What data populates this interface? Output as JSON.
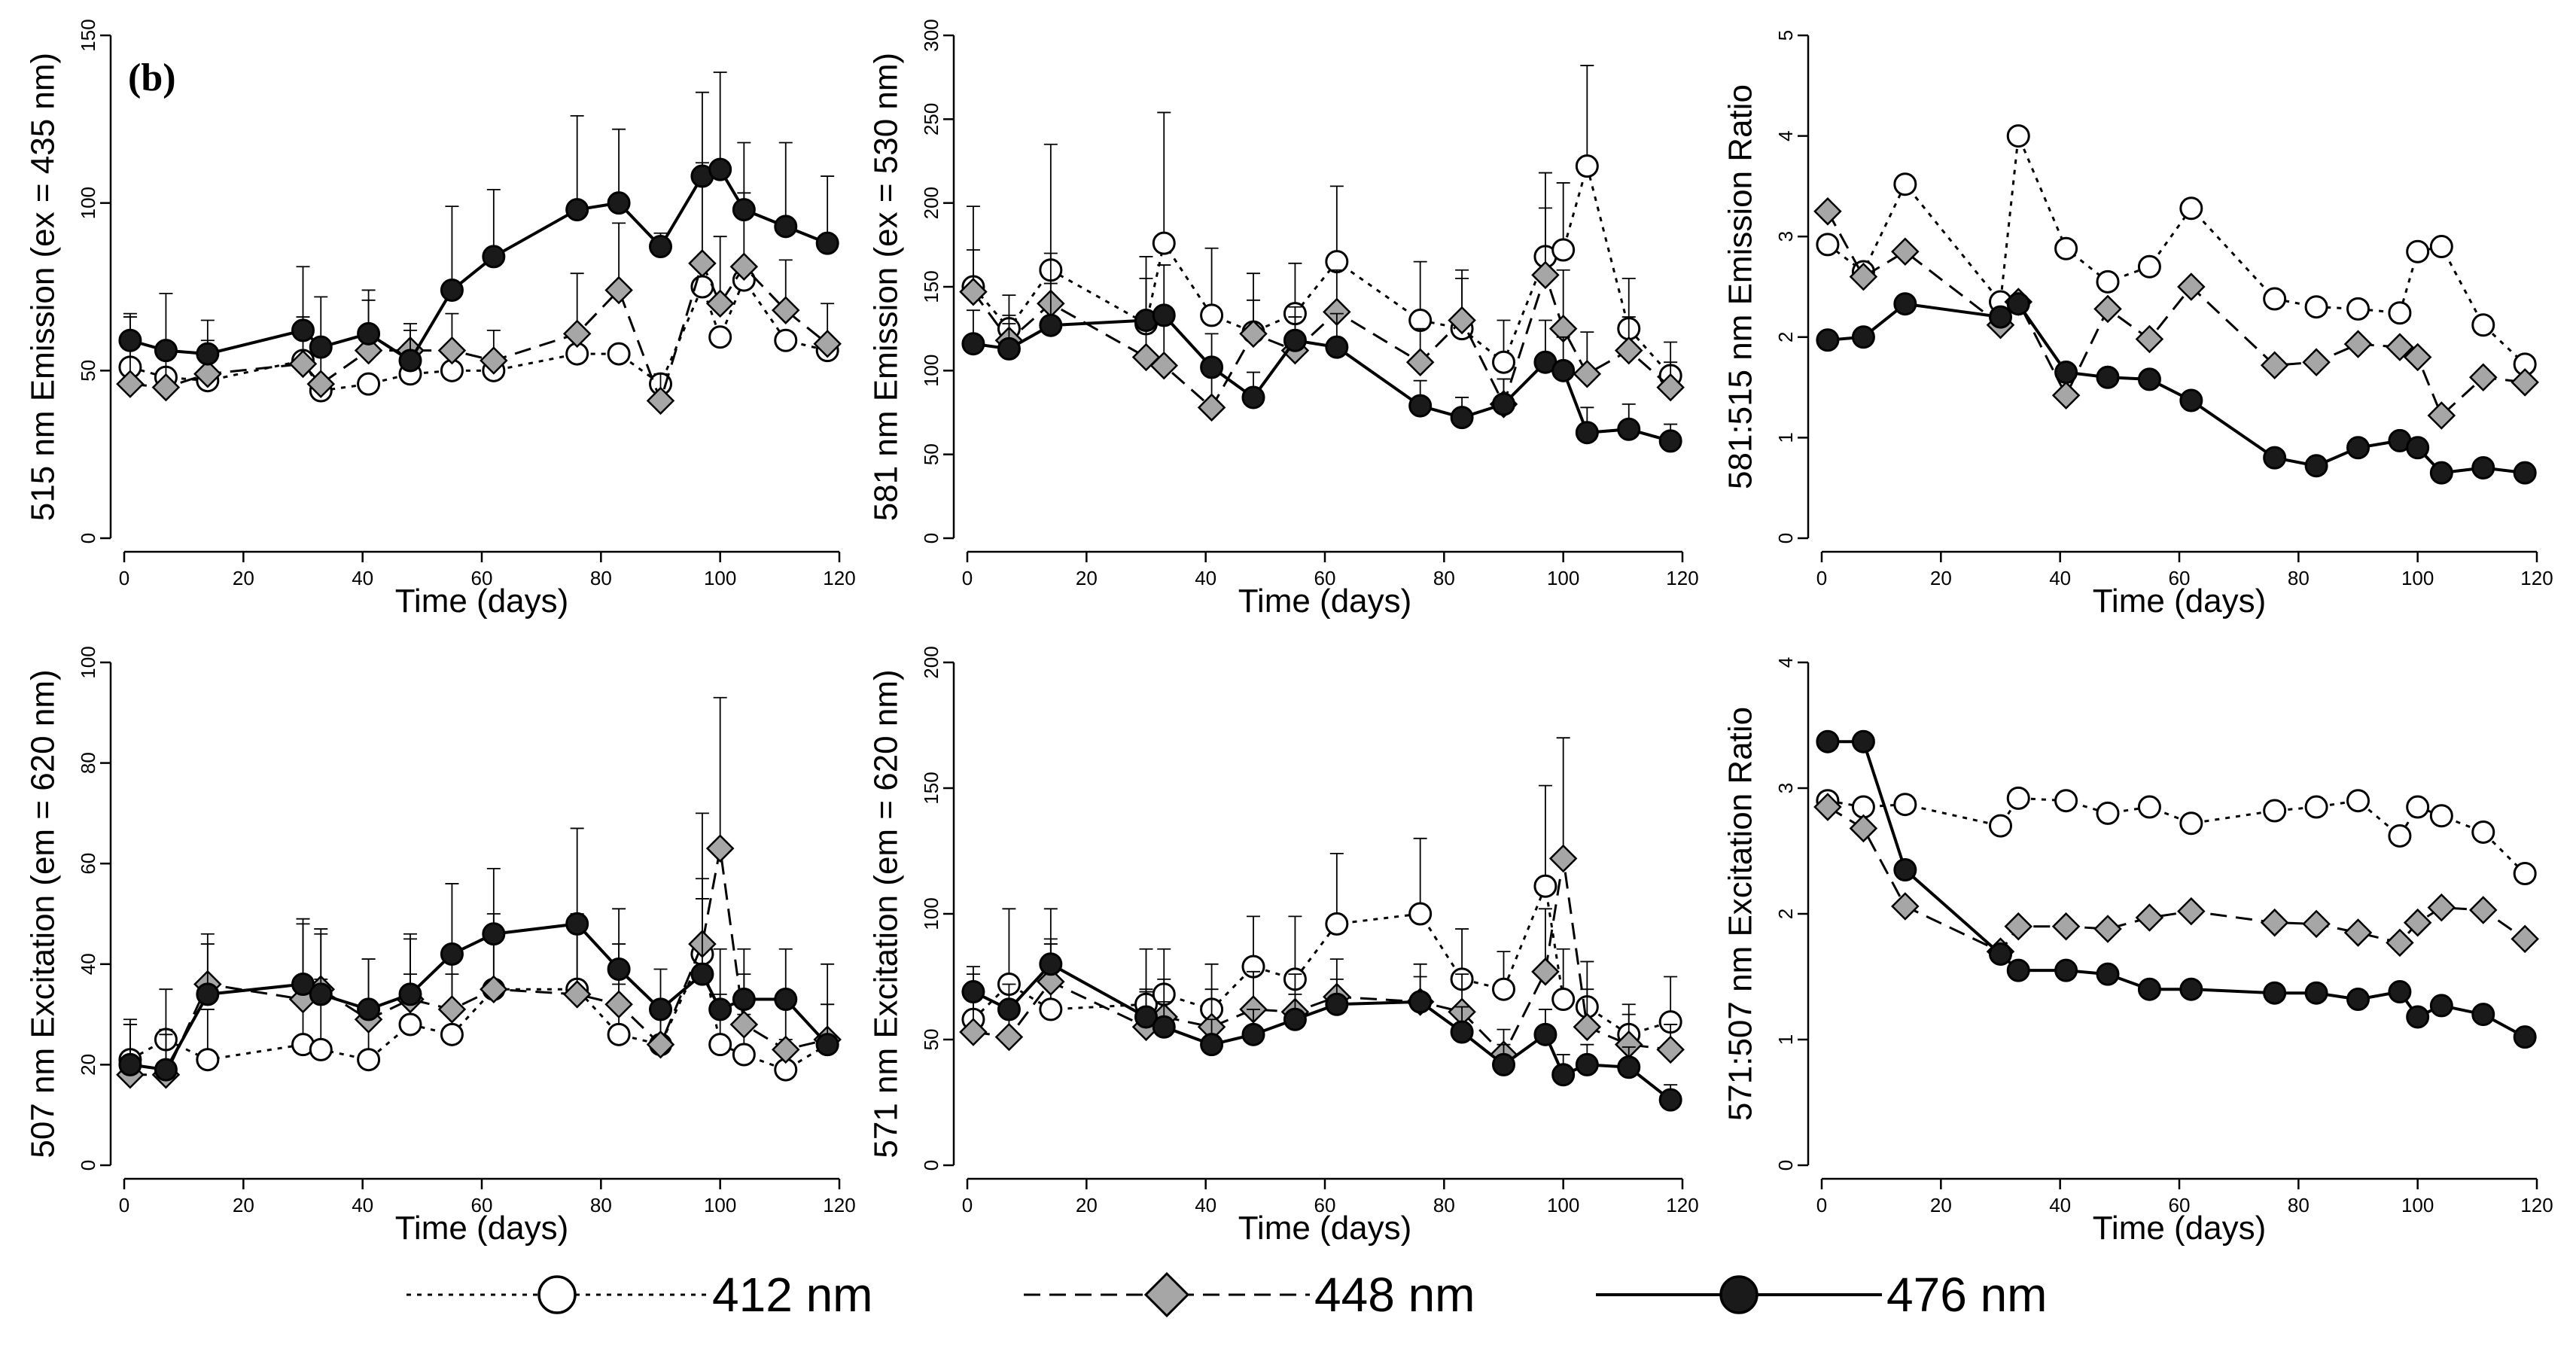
{
  "panel_tag": "(b)",
  "styles": {
    "412 nm": {
      "line_color": "#000000",
      "marker_fill": "#ffffff",
      "marker": "circle",
      "dash": "dotted"
    },
    "448 nm": {
      "line_color": "#000000",
      "marker_fill": "#a6a6a6",
      "marker": "diamond",
      "dash": "dashed"
    },
    "476 nm": {
      "line_color": "#000000",
      "marker_fill": "#1a1a1a",
      "marker": "circle",
      "dash": "solid"
    }
  },
  "legend": [
    {
      "label": "412 nm",
      "series": "412 nm"
    },
    {
      "label": "448 nm",
      "series": "448 nm"
    },
    {
      "label": "476 nm",
      "series": "476 nm"
    }
  ],
  "chart_data": [
    {
      "type": "line",
      "id": "p1",
      "xlabel": "Time (days)",
      "ylabel": "515 nm Emission (ex = 435 nm)",
      "xlim": [
        0,
        120
      ],
      "ylim": [
        0,
        150
      ],
      "xticks": [
        0,
        20,
        40,
        60,
        80,
        100,
        120
      ],
      "yticks": [
        0,
        50,
        100,
        150
      ],
      "series": [
        {
          "name": "412 nm",
          "x": [
            1,
            7,
            14,
            30,
            33,
            41,
            48,
            55,
            62,
            76,
            83,
            90,
            97,
            100,
            104,
            111,
            118
          ],
          "y": [
            51,
            48,
            47,
            53,
            44,
            46,
            49,
            50,
            50,
            55,
            55,
            46,
            75,
            60,
            77,
            59,
            56
          ],
          "err": [
            0,
            0,
            0,
            0,
            0,
            0,
            0,
            0,
            0,
            0,
            0,
            0,
            0,
            0,
            0,
            0,
            0
          ]
        },
        {
          "name": "448 nm",
          "x": [
            1,
            7,
            14,
            30,
            33,
            41,
            48,
            55,
            62,
            76,
            83,
            90,
            97,
            100,
            104,
            111,
            118
          ],
          "y": [
            46,
            45,
            49,
            52,
            46,
            56,
            56,
            56,
            53,
            61,
            74,
            41,
            82,
            70,
            81,
            68,
            58
          ],
          "err": [
            20,
            12,
            10,
            14,
            12,
            15,
            8,
            11,
            9,
            18,
            20,
            8,
            30,
            20,
            22,
            15,
            12
          ]
        },
        {
          "name": "476 nm",
          "x": [
            1,
            7,
            14,
            30,
            33,
            41,
            48,
            55,
            62,
            76,
            83,
            90,
            97,
            100,
            104,
            111,
            118
          ],
          "y": [
            59,
            56,
            55,
            62,
            57,
            61,
            53,
            74,
            84,
            98,
            100,
            87,
            108,
            110,
            98,
            93,
            88
          ],
          "err": [
            8,
            17,
            10,
            19,
            15,
            13,
            9,
            25,
            20,
            28,
            22,
            4,
            25,
            29,
            20,
            25,
            20
          ]
        }
      ]
    },
    {
      "type": "line",
      "id": "p2",
      "xlabel": "Time (days)",
      "ylabel": "581 nm Emission (ex = 530 nm)",
      "xlim": [
        0,
        120
      ],
      "ylim": [
        0,
        300
      ],
      "xticks": [
        0,
        20,
        40,
        60,
        80,
        100,
        120
      ],
      "yticks": [
        0,
        50,
        100,
        150,
        200,
        250,
        300
      ],
      "series": [
        {
          "name": "412 nm",
          "x": [
            1,
            7,
            14,
            30,
            33,
            41,
            48,
            55,
            62,
            76,
            83,
            90,
            97,
            100,
            104,
            111,
            118
          ],
          "y": [
            150,
            125,
            160,
            128,
            176,
            133,
            123,
            134,
            165,
            130,
            125,
            105,
            168,
            172,
            222,
            125,
            97
          ],
          "err": [
            48,
            20,
            75,
            40,
            78,
            40,
            35,
            30,
            45,
            35,
            30,
            25,
            50,
            40,
            60,
            30,
            20
          ]
        },
        {
          "name": "448 nm",
          "x": [
            1,
            7,
            14,
            30,
            33,
            41,
            48,
            55,
            62,
            76,
            83,
            90,
            97,
            100,
            104,
            111,
            118
          ],
          "y": [
            147,
            118,
            140,
            108,
            103,
            78,
            122,
            112,
            135,
            105,
            130,
            80,
            157,
            125,
            98,
            112,
            90
          ],
          "err": [
            25,
            15,
            30,
            20,
            25,
            20,
            20,
            20,
            25,
            20,
            30,
            15,
            40,
            35,
            25,
            20,
            15
          ]
        },
        {
          "name": "476 nm",
          "x": [
            1,
            7,
            14,
            30,
            33,
            41,
            48,
            55,
            62,
            76,
            83,
            90,
            97,
            100,
            104,
            111,
            118
          ],
          "y": [
            116,
            113,
            127,
            130,
            133,
            102,
            84,
            118,
            114,
            79,
            72,
            80,
            105,
            100,
            63,
            65,
            58
          ],
          "err": [
            20,
            15,
            25,
            25,
            30,
            20,
            15,
            20,
            20,
            15,
            12,
            15,
            25,
            20,
            15,
            15,
            10
          ]
        }
      ]
    },
    {
      "type": "line",
      "id": "p3",
      "xlabel": "Time (days)",
      "ylabel": "581:515 nm Emission Ratio",
      "xlim": [
        0,
        120
      ],
      "ylim": [
        0,
        5
      ],
      "xticks": [
        0,
        20,
        40,
        60,
        80,
        100,
        120
      ],
      "yticks": [
        0,
        1,
        2,
        3,
        4,
        5
      ],
      "series": [
        {
          "name": "412 nm",
          "x": [
            1,
            7,
            14,
            30,
            33,
            41,
            48,
            55,
            62,
            76,
            83,
            90,
            97,
            100,
            104,
            111,
            118
          ],
          "y": [
            2.92,
            2.65,
            3.52,
            2.35,
            4.0,
            2.88,
            2.55,
            2.7,
            3.28,
            2.38,
            2.3,
            2.28,
            2.24,
            2.85,
            2.9,
            2.12,
            1.73
          ]
        },
        {
          "name": "448 nm",
          "x": [
            1,
            7,
            14,
            30,
            33,
            41,
            48,
            55,
            62,
            76,
            83,
            90,
            97,
            100,
            104,
            111,
            118
          ],
          "y": [
            3.25,
            2.6,
            2.85,
            2.12,
            2.35,
            1.42,
            2.28,
            1.98,
            2.5,
            1.72,
            1.75,
            1.93,
            1.9,
            1.8,
            1.22,
            1.6,
            1.55
          ]
        },
        {
          "name": "476 nm",
          "x": [
            1,
            7,
            14,
            30,
            33,
            41,
            48,
            55,
            62,
            76,
            83,
            90,
            97,
            100,
            104,
            111,
            118
          ],
          "y": [
            1.97,
            2.0,
            2.33,
            2.2,
            2.33,
            1.65,
            1.6,
            1.58,
            1.37,
            0.8,
            0.72,
            0.9,
            0.97,
            0.9,
            0.65,
            0.7,
            0.65
          ]
        }
      ]
    },
    {
      "type": "line",
      "id": "p4",
      "xlabel": "Time (days)",
      "ylabel": "507 nm Excitation (em = 620 nm)",
      "xlim": [
        0,
        120
      ],
      "ylim": [
        0,
        100
      ],
      "xticks": [
        0,
        20,
        40,
        60,
        80,
        100,
        120
      ],
      "yticks": [
        0,
        20,
        40,
        60,
        80,
        100
      ],
      "series": [
        {
          "name": "412 nm",
          "x": [
            1,
            7,
            14,
            30,
            33,
            41,
            48,
            55,
            62,
            76,
            83,
            90,
            97,
            100,
            104,
            111,
            118
          ],
          "y": [
            21,
            25,
            21,
            24,
            23,
            21,
            28,
            26,
            35,
            35,
            26,
            24,
            42,
            24,
            22,
            19,
            24
          ],
          "err": [
            8,
            10,
            10,
            12,
            14,
            10,
            10,
            12,
            12,
            15,
            10,
            8,
            15,
            10,
            8,
            6,
            8
          ]
        },
        {
          "name": "448 nm",
          "x": [
            1,
            7,
            14,
            30,
            33,
            41,
            48,
            55,
            62,
            76,
            83,
            90,
            97,
            100,
            104,
            111,
            118
          ],
          "y": [
            18,
            18,
            36,
            33,
            35,
            29,
            33,
            31,
            35,
            34,
            32,
            24,
            44,
            63,
            28,
            23,
            25
          ],
          "err": [
            10,
            8,
            10,
            15,
            12,
            12,
            12,
            12,
            15,
            15,
            12,
            8,
            26,
            30,
            10,
            10,
            15
          ]
        },
        {
          "name": "476 nm",
          "x": [
            1,
            7,
            14,
            30,
            33,
            41,
            48,
            55,
            62,
            76,
            83,
            90,
            97,
            100,
            104,
            111,
            118
          ],
          "y": [
            20,
            19,
            34,
            36,
            34,
            31,
            34,
            42,
            46,
            48,
            39,
            31,
            38,
            31,
            33,
            33,
            24
          ],
          "err": [
            8,
            8,
            10,
            13,
            12,
            10,
            12,
            14,
            13,
            19,
            12,
            8,
            15,
            12,
            10,
            10,
            8
          ]
        }
      ]
    },
    {
      "type": "line",
      "id": "p5",
      "xlabel": "Time (days)",
      "ylabel": "571 nm Excitation (em = 620 nm)",
      "xlim": [
        0,
        120
      ],
      "ylim": [
        0,
        200
      ],
      "xticks": [
        0,
        20,
        40,
        60,
        80,
        100,
        120
      ],
      "yticks": [
        0,
        50,
        100,
        150,
        200
      ],
      "series": [
        {
          "name": "412 nm",
          "x": [
            1,
            7,
            14,
            30,
            33,
            41,
            48,
            55,
            62,
            76,
            83,
            90,
            97,
            100,
            104,
            111,
            118
          ],
          "y": [
            58,
            72,
            62,
            64,
            68,
            62,
            79,
            74,
            96,
            100,
            74,
            70,
            111,
            66,
            63,
            52,
            57
          ],
          "err": [
            18,
            30,
            40,
            22,
            18,
            18,
            20,
            25,
            28,
            30,
            20,
            15,
            40,
            20,
            18,
            12,
            18
          ]
        },
        {
          "name": "448 nm",
          "x": [
            1,
            7,
            14,
            30,
            33,
            41,
            48,
            55,
            62,
            76,
            83,
            90,
            97,
            100,
            104,
            111,
            118
          ],
          "y": [
            53,
            51,
            73,
            55,
            59,
            55,
            62,
            61,
            67,
            65,
            61,
            44,
            77,
            122,
            55,
            48,
            46
          ],
          "err": [
            15,
            12,
            15,
            15,
            15,
            15,
            15,
            15,
            15,
            15,
            15,
            10,
            25,
            48,
            15,
            12,
            10
          ]
        },
        {
          "name": "476 nm",
          "x": [
            1,
            7,
            14,
            30,
            33,
            41,
            48,
            55,
            62,
            76,
            83,
            90,
            97,
            100,
            104,
            111,
            118
          ],
          "y": [
            69,
            62,
            80,
            59,
            55,
            48,
            52,
            58,
            64,
            65,
            53,
            40,
            52,
            36,
            40,
            39,
            26
          ],
          "err": [
            10,
            10,
            10,
            10,
            10,
            10,
            10,
            10,
            10,
            10,
            10,
            8,
            10,
            8,
            8,
            8,
            6
          ]
        }
      ]
    },
    {
      "type": "line",
      "id": "p6",
      "xlabel": "Time (days)",
      "ylabel": "571:507 nm Excitation Ratio",
      "xlim": [
        0,
        120
      ],
      "ylim": [
        0,
        4
      ],
      "xticks": [
        0,
        20,
        40,
        60,
        80,
        100,
        120
      ],
      "yticks": [
        0,
        1,
        2,
        3,
        4
      ],
      "series": [
        {
          "name": "412 nm",
          "x": [
            1,
            7,
            14,
            30,
            33,
            41,
            48,
            55,
            62,
            76,
            83,
            90,
            97,
            100,
            104,
            111,
            118
          ],
          "y": [
            2.9,
            2.85,
            2.87,
            2.7,
            2.92,
            2.9,
            2.8,
            2.85,
            2.72,
            2.82,
            2.85,
            2.9,
            2.62,
            2.85,
            2.78,
            2.65,
            2.32
          ]
        },
        {
          "name": "448 nm",
          "x": [
            1,
            7,
            14,
            30,
            33,
            41,
            48,
            55,
            62,
            76,
            83,
            90,
            97,
            100,
            104,
            111,
            118
          ],
          "y": [
            2.85,
            2.68,
            2.06,
            1.7,
            1.9,
            1.9,
            1.88,
            1.97,
            2.02,
            1.93,
            1.92,
            1.85,
            1.77,
            1.93,
            2.05,
            2.03,
            1.8
          ]
        },
        {
          "name": "476 nm",
          "x": [
            1,
            7,
            14,
            30,
            33,
            41,
            48,
            55,
            62,
            76,
            83,
            90,
            97,
            100,
            104,
            111,
            118
          ],
          "y": [
            3.37,
            3.37,
            2.35,
            1.68,
            1.55,
            1.55,
            1.52,
            1.4,
            1.4,
            1.37,
            1.37,
            1.32,
            1.38,
            1.18,
            1.27,
            1.2,
            1.02
          ]
        }
      ]
    }
  ]
}
